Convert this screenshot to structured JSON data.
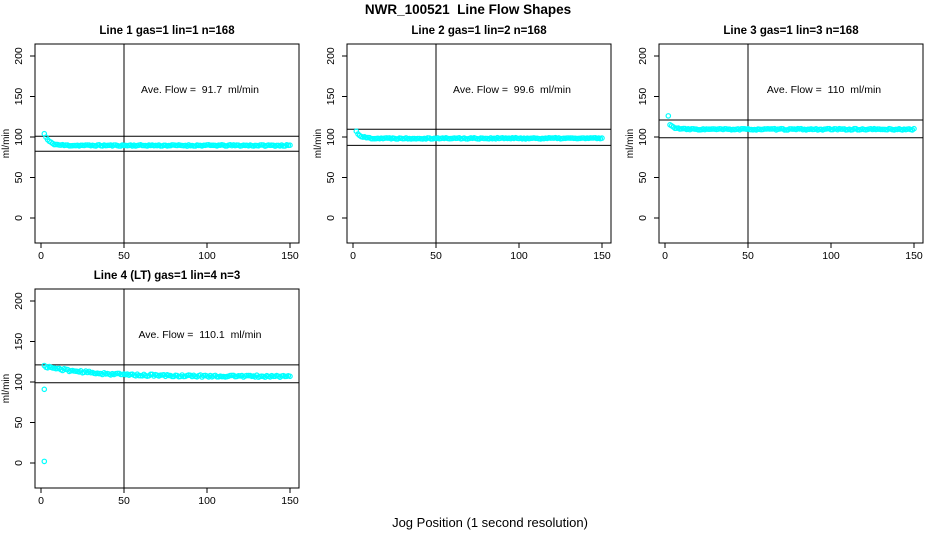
{
  "page": {
    "title": "NWR_100521  Line Flow Shapes",
    "bottom_xlabel": "Jog Position (1 second resolution)"
  },
  "colors": {
    "points": "#00ffff",
    "axis": "#000000",
    "background": "#ffffff"
  },
  "chart_data": [
    {
      "type": "scatter",
      "title": "Line 1 gas=1 lin=1 n=168",
      "annotation": "Ave. Flow =  91.7  ml/min",
      "ave_flow_ml_min": 91.7,
      "ylabel": "ml/min",
      "x_ticks": [
        0,
        50,
        100,
        150
      ],
      "y_ticks": [
        0,
        50,
        100,
        150,
        200
      ],
      "ref_lines_h": [
        100.9,
        82.5
      ],
      "ref_lines_v": [
        50
      ],
      "series": {
        "x_start": 2,
        "x_end": 150,
        "start_y": 104,
        "plateau_y": 89.6,
        "decay_tau": 2.8,
        "jitter": 0.8,
        "seed": 11,
        "outliers": []
      }
    },
    {
      "type": "scatter",
      "title": "Line 2 gas=1 lin=2 n=168",
      "annotation": "Ave. Flow =  99.6  ml/min",
      "ave_flow_ml_min": 99.6,
      "ylabel": "ml/min",
      "x_ticks": [
        0,
        50,
        100,
        150
      ],
      "y_ticks": [
        0,
        50,
        100,
        150,
        200
      ],
      "ref_lines_h": [
        109.6,
        89.6
      ],
      "ref_lines_v": [
        50
      ],
      "series": {
        "x_start": 2,
        "x_end": 150,
        "start_y": 107,
        "plateau_y": 98.4,
        "decay_tau": 2.5,
        "jitter": 0.8,
        "seed": 22,
        "outliers": []
      }
    },
    {
      "type": "scatter",
      "title": "Line 3 gas=1 lin=3 n=168",
      "annotation": "Ave. Flow =  110  ml/min",
      "ave_flow_ml_min": 110,
      "ylabel": "ml/min",
      "x_ticks": [
        0,
        50,
        100,
        150
      ],
      "y_ticks": [
        0,
        50,
        100,
        150,
        200
      ],
      "ref_lines_h": [
        121,
        99
      ],
      "ref_lines_v": [
        50
      ],
      "series": {
        "x_start": 3,
        "x_end": 150,
        "start_y": 115,
        "plateau_y": 109.5,
        "decay_tau": 3,
        "jitter": 0.8,
        "seed": 33,
        "outliers": [
          [
            2,
            126
          ]
        ]
      }
    },
    {
      "type": "scatter",
      "title": "Line 4 (LT) gas=1 lin=4 n=3",
      "annotation": "Ave. Flow =  110.1  ml/min",
      "ave_flow_ml_min": 110.1,
      "ylabel": "ml/min",
      "x_ticks": [
        0,
        50,
        100,
        150
      ],
      "y_ticks": [
        0,
        50,
        100,
        150,
        200
      ],
      "ref_lines_h": [
        121.1,
        99.1
      ],
      "ref_lines_v": [
        50
      ],
      "series": {
        "x_start": 2,
        "x_end": 150,
        "start_y": 119.5,
        "plateau_y": 107,
        "decay_tau": 28,
        "jitter": 1.3,
        "seed": 44,
        "outliers": [
          [
            2,
            91
          ],
          [
            2,
            2
          ]
        ]
      }
    }
  ]
}
